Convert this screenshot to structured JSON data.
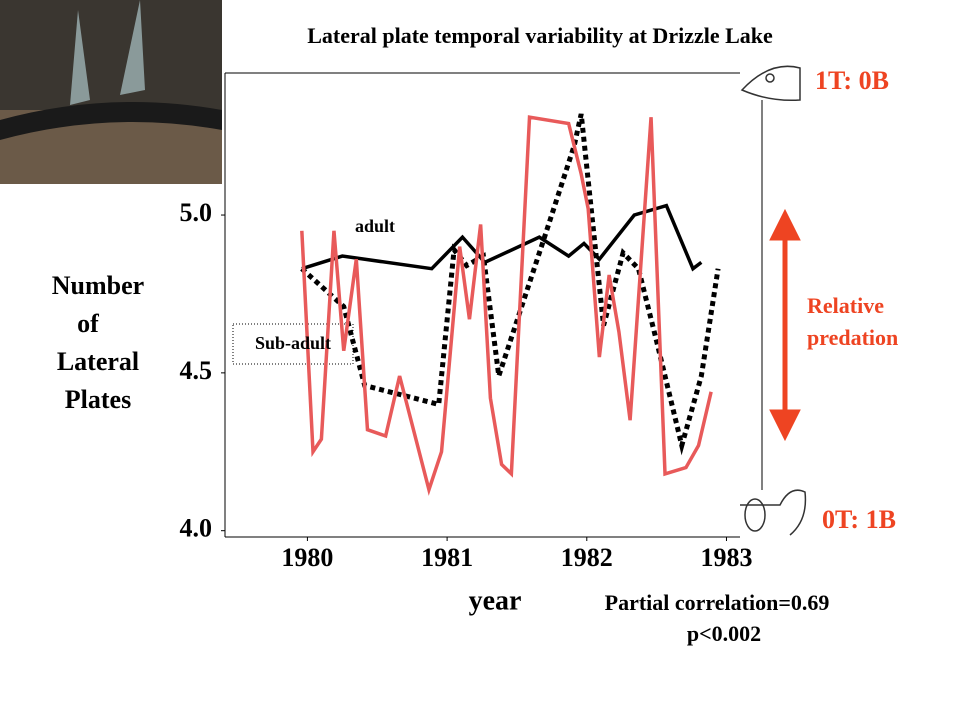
{
  "chart_data": {
    "type": "line",
    "title": "Lateral plate temporal variability at Drizzle Lake",
    "y_label": [
      "Number",
      "of",
      "Lateral",
      "Plates"
    ],
    "x_label": "year",
    "xlim": [
      1979.41,
      1983.24
    ],
    "xticks": [
      1980,
      1981,
      1982,
      1983
    ],
    "ylim": [
      3.98,
      5.45
    ],
    "yticks": [
      {
        "value": 4,
        "label": "4.0"
      },
      4.5,
      {
        "value": 5,
        "label": "5.0"
      }
    ],
    "series": [
      {
        "name": "adult",
        "color": "#000000",
        "style": "solid",
        "x": [
          1979.96,
          1980.25,
          1980.89,
          1981.11,
          1981.27,
          1981.66,
          1981.87,
          1981.98,
          1982.09,
          1982.34,
          1982.57,
          1982.76,
          1982.82
        ],
        "values": [
          4.83,
          4.87,
          4.83,
          4.93,
          4.85,
          4.93,
          4.87,
          4.91,
          4.86,
          5.0,
          5.03,
          4.83,
          4.85
        ]
      },
      {
        "name": "Sub-adult",
        "color": "#000000",
        "style": "dotted",
        "x": [
          1979.96,
          1980.26,
          1980.41,
          1980.94,
          1981.05,
          1981.14,
          1981.26,
          1981.37,
          1981.69,
          1981.91,
          1981.96,
          1982.01,
          1982.12,
          1982.26,
          1982.37,
          1982.5,
          1982.68,
          1982.82,
          1982.94
        ],
        "values": [
          4.83,
          4.71,
          4.46,
          4.4,
          4.89,
          4.84,
          4.87,
          4.49,
          4.92,
          5.22,
          5.32,
          5.11,
          4.65,
          4.88,
          4.83,
          4.6,
          4.27,
          4.49,
          4.83
        ]
      },
      {
        "color": "#e85a5a",
        "style": "solid",
        "x": [
          1979.96,
          1980.04,
          1980.1,
          1980.19,
          1980.26,
          1980.35,
          1980.43,
          1980.56,
          1980.66,
          1980.87,
          1980.96,
          1981.09,
          1981.16,
          1981.24,
          1981.31,
          1981.39,
          1981.46,
          1981.59,
          1981.87,
          1981.96,
          1982.01,
          1982.09,
          1982.16,
          1982.23,
          1982.31,
          1982.46,
          1982.56,
          1982.71,
          1982.8,
          1982.89
        ],
        "values": [
          4.95,
          4.25,
          4.29,
          4.95,
          4.57,
          4.86,
          4.32,
          4.3,
          4.49,
          4.13,
          4.25,
          4.9,
          4.67,
          4.97,
          4.42,
          4.21,
          4.18,
          5.31,
          5.29,
          5.13,
          5.02,
          4.55,
          4.81,
          4.63,
          4.35,
          5.31,
          4.18,
          4.2,
          4.27,
          4.44
        ]
      }
    ],
    "annotations": {
      "top_label": "1T: 0B",
      "bottom_label": "0T: 1B",
      "predation": [
        "Relative",
        "predation"
      ],
      "correlation": "Partial correlation=0.69",
      "p_value": "p<0.002"
    }
  }
}
